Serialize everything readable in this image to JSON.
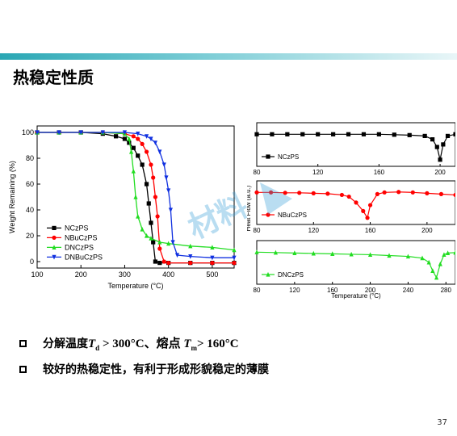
{
  "title": "热稳定性质",
  "bullets": {
    "b1_prefix": "分解温度",
    "b1_T": "T",
    "b1_d": "d",
    "b1_gt300": " > 300°C、熔点 ",
    "b1_T2": "T",
    "b1_m": "m",
    "b1_gt160": "> 160°C",
    "b2": "较好的热稳定性，有利于形成形貌稳定的薄膜"
  },
  "page_number": "37",
  "colors": {
    "NCzPS": "#000000",
    "NBuCzPS": "#ff0000",
    "DNCzPS": "#22dd22",
    "DNBuCzPS": "#1030e0",
    "accent": "#2aa7b4"
  },
  "chart_data": [
    {
      "type": "line",
      "xlabel": "Temperature (°C)",
      "ylabel": "Weight Remaining (%)",
      "xlim": [
        100,
        550
      ],
      "ylim": [
        -5,
        105
      ],
      "xticks": [
        "100",
        "200",
        "300",
        "400",
        "500"
      ],
      "yticks": [
        "0",
        "20",
        "40",
        "60",
        "80",
        "100"
      ],
      "legend_position": "bottom-left",
      "series": [
        {
          "name": "NCzPS",
          "marker": "square",
          "x": [
            100,
            150,
            200,
            250,
            280,
            300,
            310,
            320,
            330,
            340,
            350,
            355,
            360,
            365,
            370,
            380,
            400,
            450,
            500,
            550
          ],
          "values": [
            100,
            100,
            100,
            99,
            97,
            95,
            92,
            88,
            82,
            75,
            60,
            45,
            30,
            15,
            0,
            -1,
            -1,
            -1,
            -1,
            -1
          ]
        },
        {
          "name": "NBuCzPS",
          "marker": "circle",
          "x": [
            100,
            150,
            200,
            250,
            300,
            320,
            330,
            340,
            350,
            360,
            365,
            370,
            375,
            380,
            390,
            400,
            450,
            500,
            550
          ],
          "values": [
            100,
            100,
            100,
            100,
            99,
            97,
            95,
            91,
            85,
            75,
            65,
            50,
            35,
            10,
            0,
            -1,
            -1,
            -1,
            -1
          ]
        },
        {
          "name": "DNCzPS",
          "marker": "triangle-up",
          "x": [
            100,
            150,
            200,
            250,
            300,
            310,
            315,
            320,
            325,
            330,
            340,
            350,
            360,
            380,
            400,
            450,
            500,
            550
          ],
          "values": [
            100,
            100,
            100,
            100,
            99,
            95,
            85,
            70,
            50,
            35,
            25,
            20,
            18,
            15,
            14,
            12,
            11,
            9
          ]
        },
        {
          "name": "DNBuCzPS",
          "marker": "triangle-down",
          "x": [
            100,
            150,
            200,
            250,
            300,
            330,
            350,
            360,
            370,
            380,
            390,
            395,
            400,
            405,
            410,
            420,
            450,
            500,
            550
          ],
          "values": [
            100,
            100,
            100,
            100,
            100,
            99,
            97,
            95,
            92,
            85,
            75,
            65,
            55,
            40,
            15,
            5,
            4,
            3,
            3
          ]
        }
      ]
    },
    {
      "type": "line",
      "xlabel": "Temperature (°C)",
      "ylabel": "Heat Flow (a.u.)",
      "panels": [
        {
          "name": "NCzPS",
          "xticks": [
            "80",
            "120",
            "160",
            "200"
          ],
          "xlim": [
            80,
            210
          ],
          "x": [
            80,
            90,
            100,
            110,
            120,
            130,
            140,
            150,
            160,
            170,
            180,
            190,
            195,
            198,
            200,
            202,
            205,
            210
          ],
          "values": [
            0,
            0,
            0,
            0,
            0,
            0,
            0,
            0,
            0,
            -0.05,
            -0.1,
            -0.2,
            -0.6,
            -1.5,
            -3.0,
            -1.2,
            -0.2,
            0
          ]
        },
        {
          "name": "NBuCzPS",
          "xticks": [
            "80",
            "120",
            "160",
            "200"
          ],
          "xlim": [
            80,
            220
          ],
          "x": [
            80,
            90,
            100,
            110,
            120,
            130,
            140,
            145,
            150,
            155,
            158,
            160,
            165,
            170,
            180,
            190,
            200,
            210,
            220
          ],
          "values": [
            0,
            0,
            -0.05,
            -0.05,
            -0.1,
            -0.15,
            -0.3,
            -0.5,
            -1.2,
            -2.2,
            -3.0,
            -1.5,
            -0.2,
            0,
            0.05,
            0,
            -0.1,
            -0.2,
            -0.3
          ]
        },
        {
          "name": "DNCzPS",
          "xticks": [
            "80",
            "120",
            "160",
            "200",
            "240",
            "280"
          ],
          "xlim": [
            80,
            290
          ],
          "x": [
            80,
            100,
            120,
            140,
            160,
            180,
            200,
            220,
            240,
            255,
            262,
            266,
            270,
            274,
            278,
            282,
            290
          ],
          "values": [
            0,
            -0.05,
            -0.1,
            -0.15,
            -0.2,
            -0.25,
            -0.3,
            -0.4,
            -0.5,
            -0.7,
            -1.2,
            -2.2,
            -3.0,
            -1.4,
            -0.3,
            -0.1,
            -0.05
          ]
        }
      ]
    }
  ]
}
